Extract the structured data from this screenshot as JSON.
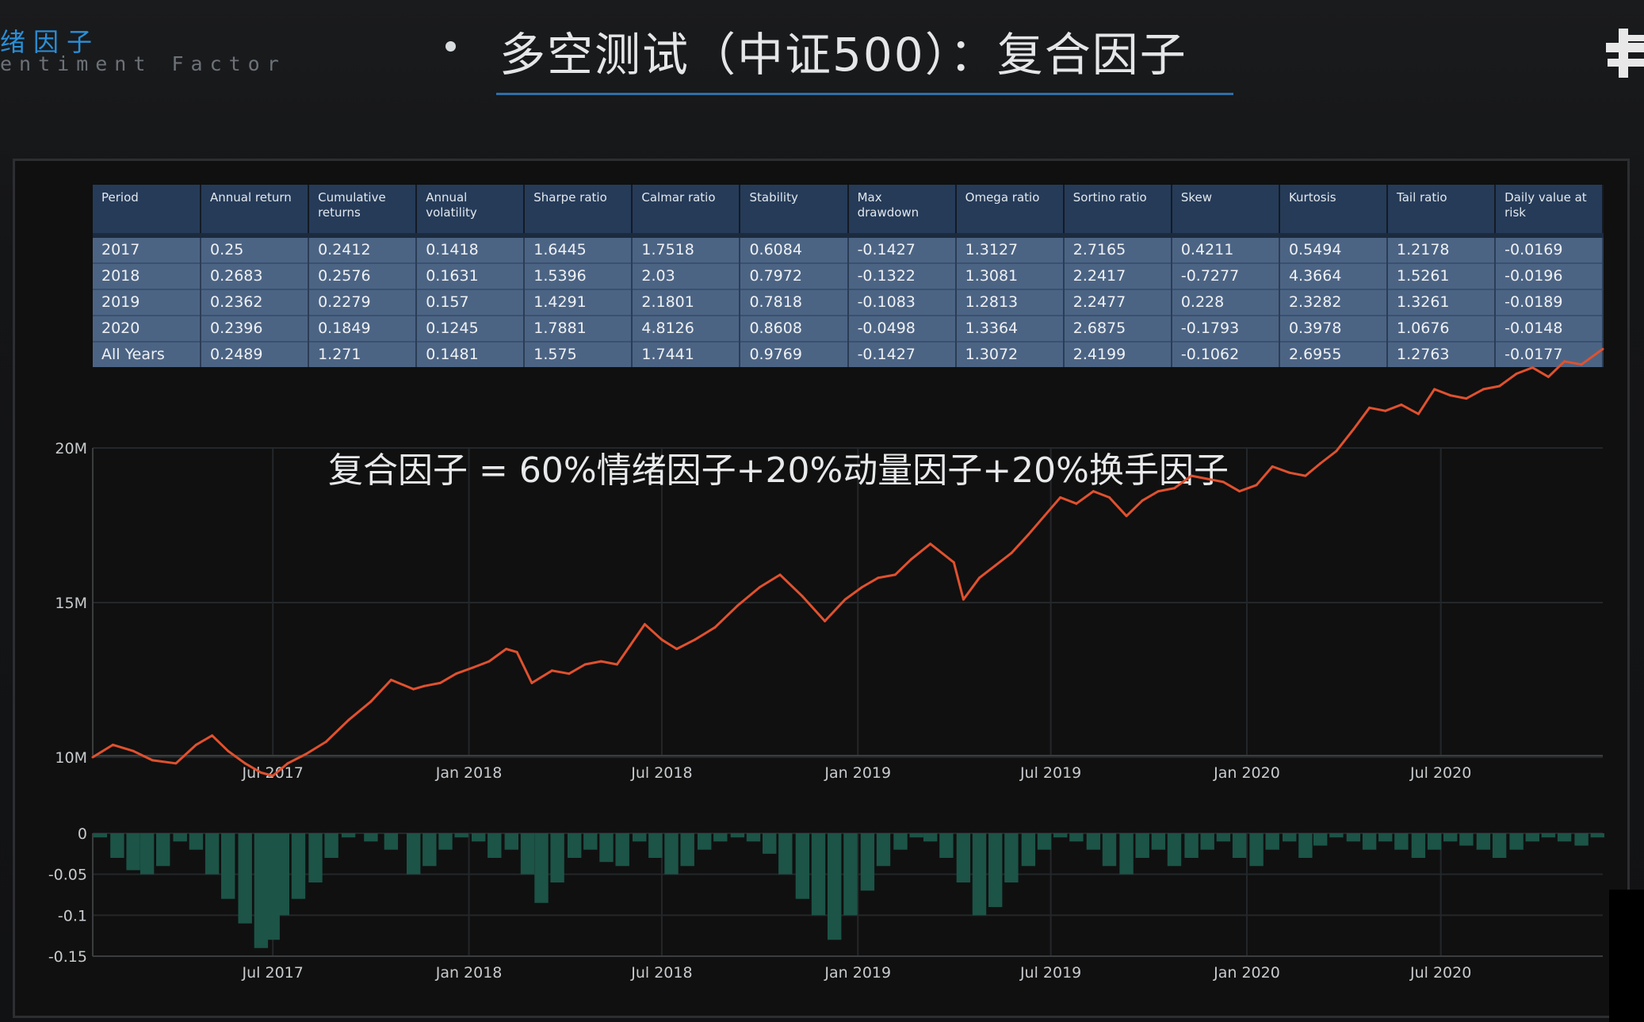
{
  "header": {
    "brand_cn": "绪因子",
    "brand_en": "entiment Factor",
    "title": "多空测试（中证500）：复合因子"
  },
  "colors": {
    "line": "#e0512e",
    "drawdown_bars": "#1c5447",
    "table_header": "#253b58",
    "table_row": "#4c6484",
    "title_underline": "#2f6ea8"
  },
  "icons": [
    "brand-logo-icon"
  ],
  "table": {
    "columns": [
      "Period",
      "Annual return",
      "Cumulative returns",
      "Annual volatility",
      "Sharpe ratio",
      "Calmar ratio",
      "Stability",
      "Max drawdown",
      "Omega ratio",
      "Sortino ratio",
      "Skew",
      "Kurtosis",
      "Tail ratio",
      "Daily value at risk"
    ],
    "rows": [
      [
        "2017",
        "0.25",
        "0.2412",
        "0.1418",
        "1.6445",
        "1.7518",
        "0.6084",
        "-0.1427",
        "1.3127",
        "2.7165",
        "0.4211",
        "0.5494",
        "1.2178",
        "-0.0169"
      ],
      [
        "2018",
        "0.2683",
        "0.2576",
        "0.1631",
        "1.5396",
        "2.03",
        "0.7972",
        "-0.1322",
        "1.3081",
        "2.2417",
        "-0.7277",
        "4.3664",
        "1.5261",
        "-0.0196"
      ],
      [
        "2019",
        "0.2362",
        "0.2279",
        "0.157",
        "1.4291",
        "2.1801",
        "0.7818",
        "-0.1083",
        "1.2813",
        "2.2477",
        "0.228",
        "2.3282",
        "1.3261",
        "-0.0189"
      ],
      [
        "2020",
        "0.2396",
        "0.1849",
        "0.1245",
        "1.7881",
        "4.8126",
        "0.8608",
        "-0.0498",
        "1.3364",
        "2.6875",
        "-0.1793",
        "0.3978",
        "1.0676",
        "-0.0148"
      ],
      [
        "All Years",
        "0.2489",
        "1.271",
        "0.1481",
        "1.575",
        "1.7441",
        "0.9769",
        "-0.1427",
        "1.3072",
        "2.4199",
        "-0.1062",
        "2.6955",
        "1.2763",
        "-0.0177"
      ]
    ]
  },
  "chart_data": [
    {
      "type": "line",
      "annotation": "复合因子 = 60%情绪因子+20%动量因子+20%换手因子",
      "x_tick_labels": [
        "Jul 2017",
        "Jan 2018",
        "Jul 2018",
        "Jan 2019",
        "Jul 2019",
        "Jan 2020",
        "Jul 2020"
      ],
      "y_tick_labels": [
        "10M",
        "15M",
        "20M"
      ],
      "ylim": [
        9000000,
        23500000
      ],
      "xlim": [
        "2017-01-13",
        "2020-11-30"
      ],
      "grid": true,
      "series": [
        {
          "x": [
            "2017-01-13",
            "2017-02-01",
            "2017-02-20",
            "2017-03-10",
            "2017-04-01",
            "2017-04-20",
            "2017-05-05",
            "2017-05-20",
            "2017-06-05",
            "2017-06-20",
            "2017-07-01",
            "2017-07-15",
            "2017-08-01",
            "2017-08-20",
            "2017-09-10",
            "2017-10-01",
            "2017-10-20",
            "2017-11-10",
            "2017-11-20",
            "2017-12-05",
            "2017-12-20",
            "2018-01-05",
            "2018-01-20",
            "2018-02-05",
            "2018-02-15",
            "2018-03-01",
            "2018-03-20",
            "2018-04-05",
            "2018-04-20",
            "2018-05-05",
            "2018-05-20",
            "2018-06-01",
            "2018-06-15",
            "2018-07-01",
            "2018-07-15",
            "2018-08-01",
            "2018-08-20",
            "2018-09-10",
            "2018-10-01",
            "2018-10-20",
            "2018-11-10",
            "2018-12-01",
            "2018-12-20",
            "2019-01-05",
            "2019-01-20",
            "2019-02-05",
            "2019-02-20",
            "2019-03-10",
            "2019-04-01",
            "2019-04-10",
            "2019-04-25",
            "2019-05-10",
            "2019-05-25",
            "2019-06-10",
            "2019-06-25",
            "2019-07-10",
            "2019-07-25",
            "2019-08-10",
            "2019-08-25",
            "2019-09-10",
            "2019-09-25",
            "2019-10-10",
            "2019-10-25",
            "2019-11-10",
            "2019-11-25",
            "2019-12-10",
            "2019-12-25",
            "2020-01-10",
            "2020-01-25",
            "2020-02-10",
            "2020-02-25",
            "2020-03-10",
            "2020-03-25",
            "2020-04-10",
            "2020-04-25",
            "2020-05-10",
            "2020-05-25",
            "2020-06-10",
            "2020-06-25",
            "2020-07-10",
            "2020-07-25",
            "2020-08-10",
            "2020-08-25",
            "2020-09-10",
            "2020-09-25",
            "2020-10-10",
            "2020-10-25",
            "2020-11-10",
            "2020-11-30"
          ],
          "values": [
            10000000,
            10400000,
            10200000,
            9900000,
            9800000,
            10400000,
            10700000,
            10200000,
            9800000,
            9500000,
            9400000,
            9800000,
            10100000,
            10500000,
            11200000,
            11800000,
            12500000,
            12200000,
            12300000,
            12400000,
            12700000,
            12900000,
            13100000,
            13500000,
            13400000,
            12400000,
            12800000,
            12700000,
            13000000,
            13100000,
            13000000,
            13600000,
            14300000,
            13800000,
            13500000,
            13800000,
            14200000,
            14900000,
            15500000,
            15900000,
            15200000,
            14400000,
            15100000,
            15500000,
            15800000,
            15900000,
            16400000,
            16900000,
            16300000,
            15100000,
            15800000,
            16200000,
            16600000,
            17200000,
            17800000,
            18400000,
            18200000,
            18600000,
            18400000,
            17800000,
            18300000,
            18600000,
            18700000,
            19100000,
            19000000,
            18900000,
            18600000,
            18800000,
            19400000,
            19200000,
            19100000,
            19500000,
            19900000,
            20600000,
            21300000,
            21200000,
            21400000,
            21100000,
            21900000,
            21700000,
            21600000,
            21900000,
            22000000,
            22400000,
            22600000,
            22300000,
            22800000,
            22700000,
            23200000
          ]
        }
      ]
    },
    {
      "type": "bar",
      "x_tick_labels": [
        "Jul 2017",
        "Jan 2018",
        "Jul 2018",
        "Jan 2019",
        "Jul 2019",
        "Jan 2020",
        "Jul 2020"
      ],
      "y_tick_labels": [
        "0",
        "-0.05",
        "-0.1",
        "-0.15"
      ],
      "ylim": [
        -0.15,
        0
      ],
      "xlim": [
        "2017-01-13",
        "2020-11-30"
      ],
      "series": [
        {
          "x": [
            "2017-01-20",
            "2017-02-05",
            "2017-02-20",
            "2017-03-05",
            "2017-03-20",
            "2017-04-05",
            "2017-04-20",
            "2017-05-05",
            "2017-05-20",
            "2017-06-05",
            "2017-06-20",
            "2017-07-01",
            "2017-07-10",
            "2017-07-25",
            "2017-08-10",
            "2017-08-25",
            "2017-09-10",
            "2017-10-01",
            "2017-10-20",
            "2017-11-10",
            "2017-11-25",
            "2017-12-10",
            "2017-12-25",
            "2018-01-10",
            "2018-01-25",
            "2018-02-10",
            "2018-02-25",
            "2018-03-10",
            "2018-03-25",
            "2018-04-10",
            "2018-04-25",
            "2018-05-10",
            "2018-05-25",
            "2018-06-10",
            "2018-06-25",
            "2018-07-10",
            "2018-07-25",
            "2018-08-10",
            "2018-08-25",
            "2018-09-10",
            "2018-09-25",
            "2018-10-10",
            "2018-10-25",
            "2018-11-10",
            "2018-11-25",
            "2018-12-10",
            "2018-12-25",
            "2019-01-10",
            "2019-01-25",
            "2019-02-10",
            "2019-02-25",
            "2019-03-10",
            "2019-03-25",
            "2019-04-10",
            "2019-04-25",
            "2019-05-10",
            "2019-05-25",
            "2019-06-10",
            "2019-06-25",
            "2019-07-10",
            "2019-07-25",
            "2019-08-10",
            "2019-08-25",
            "2019-09-10",
            "2019-09-25",
            "2019-10-10",
            "2019-10-25",
            "2019-11-10",
            "2019-11-25",
            "2019-12-10",
            "2019-12-25",
            "2020-01-10",
            "2020-01-25",
            "2020-02-10",
            "2020-02-25",
            "2020-03-10",
            "2020-03-25",
            "2020-04-10",
            "2020-04-25",
            "2020-05-10",
            "2020-05-25",
            "2020-06-10",
            "2020-06-25",
            "2020-07-10",
            "2020-07-25",
            "2020-08-10",
            "2020-08-25",
            "2020-09-10",
            "2020-09-25",
            "2020-10-10",
            "2020-10-25",
            "2020-11-10",
            "2020-11-25"
          ],
          "values": [
            -0.005,
            -0.03,
            -0.045,
            -0.05,
            -0.04,
            -0.01,
            -0.02,
            -0.05,
            -0.08,
            -0.11,
            -0.14,
            -0.13,
            -0.1,
            -0.08,
            -0.06,
            -0.03,
            -0.005,
            -0.01,
            -0.02,
            -0.05,
            -0.04,
            -0.02,
            -0.005,
            -0.01,
            -0.03,
            -0.02,
            -0.05,
            -0.085,
            -0.06,
            -0.03,
            -0.02,
            -0.035,
            -0.04,
            -0.01,
            -0.03,
            -0.05,
            -0.04,
            -0.02,
            -0.01,
            -0.005,
            -0.01,
            -0.025,
            -0.05,
            -0.08,
            -0.1,
            -0.13,
            -0.1,
            -0.07,
            -0.04,
            -0.02,
            -0.005,
            -0.01,
            -0.03,
            -0.06,
            -0.1,
            -0.09,
            -0.06,
            -0.04,
            -0.02,
            -0.005,
            -0.01,
            -0.02,
            -0.04,
            -0.05,
            -0.03,
            -0.02,
            -0.04,
            -0.03,
            -0.02,
            -0.01,
            -0.03,
            -0.04,
            -0.02,
            -0.01,
            -0.03,
            -0.015,
            -0.005,
            -0.01,
            -0.02,
            -0.01,
            -0.02,
            -0.03,
            -0.02,
            -0.01,
            -0.015,
            -0.02,
            -0.03,
            -0.02,
            -0.01,
            -0.005,
            -0.01,
            -0.015,
            -0.005
          ]
        }
      ]
    }
  ]
}
